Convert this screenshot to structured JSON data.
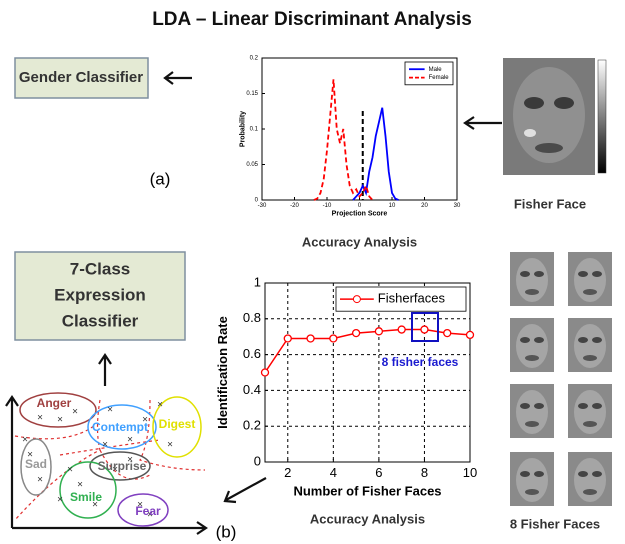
{
  "title": "LDA – Linear Discriminant Analysis",
  "gender_box": "Gender Classifier",
  "expression_box": [
    "7-Class",
    "Expression",
    "Classifier"
  ],
  "label_a": "(a)",
  "label_b": "(b)",
  "fisher_face_caption": "Fisher Face",
  "fisher_faces_caption": "8 Fisher Faces",
  "clusters": [
    "Anger",
    "Contempt",
    "Digest",
    "Sad",
    "Surprise",
    "Smile",
    "Fear"
  ],
  "chart_data": [
    {
      "type": "line",
      "title": "Accuracy Analysis",
      "x_label": "Projection Score",
      "y_label": "Probability",
      "x": [
        -14,
        -13,
        -12,
        -11,
        -10,
        -9,
        -8,
        -7,
        -6,
        -5,
        -4,
        -3,
        -2,
        -1,
        0,
        1,
        2,
        3,
        4,
        5,
        6,
        7,
        8,
        9,
        10,
        11,
        12,
        13,
        14
      ],
      "series": [
        {
          "name": "Male",
          "color": "#0000ff",
          "dash": false,
          "values": [
            null,
            null,
            null,
            null,
            null,
            null,
            null,
            null,
            null,
            null,
            null,
            null,
            0,
            0.005,
            0.01,
            0.02,
            0.01,
            0.04,
            0.06,
            0.09,
            0.11,
            0.13,
            0.09,
            0.04,
            0.01,
            0.002,
            0,
            null,
            null
          ]
        },
        {
          "name": "Female",
          "color": "#ff0000",
          "dash": true,
          "values": [
            0,
            0.002,
            0.01,
            0.03,
            0.07,
            0.12,
            0.17,
            0.1,
            0.08,
            0.1,
            0.05,
            0.02,
            0.01,
            0.015,
            0.005,
            0.01,
            0.02,
            0.005,
            0,
            null,
            null,
            null,
            null,
            null,
            null,
            null,
            null,
            null,
            null
          ]
        }
      ],
      "xlim": [
        -30,
        30
      ],
      "xticks": [
        -30,
        -20,
        -10,
        0,
        10,
        20,
        30
      ],
      "ylim": [
        0,
        0.2
      ],
      "yticks": [
        0,
        0.05,
        0.1,
        0.15,
        0.2
      ],
      "grid": false,
      "legend": "upper right"
    },
    {
      "type": "line",
      "title": "Accuracy Analysis",
      "x_label": "Number of Fisher Faces",
      "y_label": "Identification Rate",
      "annotation": "8 fisher faces",
      "x": [
        1,
        2,
        3,
        4,
        5,
        6,
        7,
        8,
        9,
        10
      ],
      "series": [
        {
          "name": "Fisherfaces",
          "color": "#ff0000",
          "dash": false,
          "marker": "circle",
          "values": [
            0.5,
            0.69,
            0.69,
            0.69,
            0.72,
            0.73,
            0.74,
            0.74,
            0.72,
            0.71
          ]
        }
      ],
      "xlim": [
        1,
        10
      ],
      "xticks": [
        2,
        4,
        6,
        8,
        10
      ],
      "ylim": [
        0,
        1
      ],
      "yticks": [
        0,
        0.2,
        0.4,
        0.6,
        0.8,
        1
      ],
      "grid": true,
      "legend": "upper right"
    }
  ]
}
